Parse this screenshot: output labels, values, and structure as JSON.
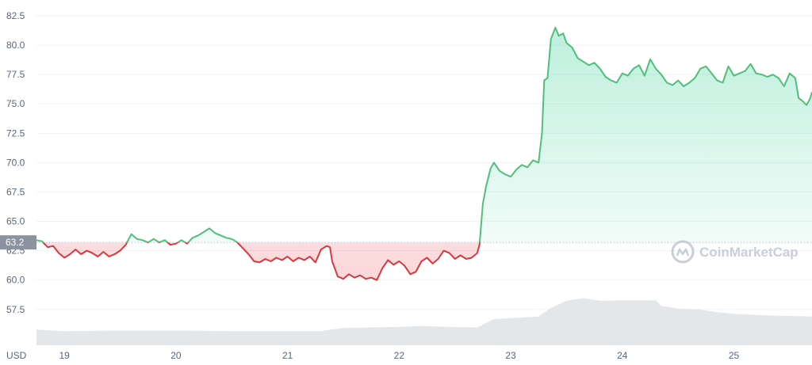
{
  "chart_data": {
    "type": "line",
    "title": "",
    "currency_label": "USD",
    "baseline": {
      "value": 63.2,
      "label": "63.2"
    },
    "ylim": [
      56.0,
      82.5
    ],
    "y_ticks": [
      {
        "value": 82.5,
        "label": "82.5"
      },
      {
        "value": 80.0,
        "label": "80.0"
      },
      {
        "value": 77.5,
        "label": "77.5"
      },
      {
        "value": 75.0,
        "label": "75.0"
      },
      {
        "value": 72.5,
        "label": "72.5"
      },
      {
        "value": 70.0,
        "label": "70.0"
      },
      {
        "value": 67.5,
        "label": "67.5"
      },
      {
        "value": 65.0,
        "label": "65.0"
      },
      {
        "value": 62.5,
        "label": "62.5"
      },
      {
        "value": 60.0,
        "label": "60.0"
      },
      {
        "value": 57.5,
        "label": "57.5"
      }
    ],
    "xlim": [
      18.75,
      25.7
    ],
    "x_ticks": [
      {
        "value": 19,
        "label": "19"
      },
      {
        "value": 20,
        "label": "20"
      },
      {
        "value": 21,
        "label": "21"
      },
      {
        "value": 22,
        "label": "22"
      },
      {
        "value": 23,
        "label": "23"
      },
      {
        "value": 24,
        "label": "24"
      },
      {
        "value": 25,
        "label": "25"
      }
    ],
    "colors": {
      "up": "#16c784",
      "down": "#ea3943",
      "up_line": "#4fbf7a",
      "down_line": "#d9383f",
      "volume": "#e1e4e8"
    },
    "watermark": "CoinMarketCap",
    "series": [
      {
        "values": [
          [
            18.75,
            63.4
          ],
          [
            18.8,
            63.3
          ],
          [
            18.85,
            62.8
          ],
          [
            18.9,
            62.9
          ],
          [
            18.95,
            62.3
          ],
          [
            19.0,
            61.9
          ],
          [
            19.05,
            62.2
          ],
          [
            19.1,
            62.6
          ],
          [
            19.15,
            62.2
          ],
          [
            19.2,
            62.5
          ],
          [
            19.25,
            62.3
          ],
          [
            19.3,
            62.0
          ],
          [
            19.35,
            62.4
          ],
          [
            19.4,
            62.0
          ],
          [
            19.45,
            62.2
          ],
          [
            19.5,
            62.5
          ],
          [
            19.55,
            63.0
          ],
          [
            19.6,
            63.9
          ],
          [
            19.65,
            63.5
          ],
          [
            19.7,
            63.4
          ],
          [
            19.75,
            63.2
          ],
          [
            19.8,
            63.5
          ],
          [
            19.85,
            63.2
          ],
          [
            19.9,
            63.4
          ],
          [
            19.95,
            63.0
          ],
          [
            20.0,
            63.1
          ],
          [
            20.05,
            63.4
          ],
          [
            20.1,
            63.1
          ],
          [
            20.15,
            63.6
          ],
          [
            20.2,
            63.8
          ],
          [
            20.25,
            64.1
          ],
          [
            20.3,
            64.4
          ],
          [
            20.35,
            64.0
          ],
          [
            20.4,
            63.8
          ],
          [
            20.45,
            63.6
          ],
          [
            20.5,
            63.5
          ],
          [
            20.55,
            63.2
          ],
          [
            20.6,
            62.7
          ],
          [
            20.65,
            62.2
          ],
          [
            20.7,
            61.6
          ],
          [
            20.75,
            61.5
          ],
          [
            20.8,
            61.8
          ],
          [
            20.85,
            61.6
          ],
          [
            20.9,
            61.9
          ],
          [
            20.95,
            61.7
          ],
          [
            21.0,
            62.0
          ],
          [
            21.05,
            61.6
          ],
          [
            21.1,
            61.9
          ],
          [
            21.15,
            61.7
          ],
          [
            21.2,
            62.0
          ],
          [
            21.25,
            61.5
          ],
          [
            21.3,
            62.6
          ],
          [
            21.35,
            62.9
          ],
          [
            21.38,
            62.8
          ],
          [
            21.4,
            61.6
          ],
          [
            21.45,
            60.3
          ],
          [
            21.5,
            60.1
          ],
          [
            21.55,
            60.5
          ],
          [
            21.6,
            60.2
          ],
          [
            21.65,
            60.4
          ],
          [
            21.7,
            60.1
          ],
          [
            21.75,
            60.2
          ],
          [
            21.8,
            60.0
          ],
          [
            21.85,
            61.0
          ],
          [
            21.9,
            61.7
          ],
          [
            21.95,
            61.3
          ],
          [
            22.0,
            61.6
          ],
          [
            22.05,
            61.2
          ],
          [
            22.1,
            60.5
          ],
          [
            22.15,
            60.7
          ],
          [
            22.2,
            61.6
          ],
          [
            22.25,
            61.9
          ],
          [
            22.3,
            61.4
          ],
          [
            22.35,
            61.8
          ],
          [
            22.4,
            62.5
          ],
          [
            22.45,
            62.3
          ],
          [
            22.5,
            61.8
          ],
          [
            22.55,
            62.1
          ],
          [
            22.6,
            61.8
          ],
          [
            22.65,
            61.9
          ],
          [
            22.7,
            62.3
          ],
          [
            22.72,
            63.0
          ],
          [
            22.75,
            66.5
          ],
          [
            22.78,
            68.0
          ],
          [
            22.82,
            69.5
          ],
          [
            22.85,
            70.0
          ],
          [
            22.9,
            69.3
          ],
          [
            22.95,
            69.0
          ],
          [
            23.0,
            68.8
          ],
          [
            23.05,
            69.4
          ],
          [
            23.1,
            69.8
          ],
          [
            23.15,
            69.6
          ],
          [
            23.2,
            70.2
          ],
          [
            23.25,
            70.0
          ],
          [
            23.28,
            72.5
          ],
          [
            23.3,
            77.0
          ],
          [
            23.33,
            77.2
          ],
          [
            23.36,
            80.5
          ],
          [
            23.4,
            81.5
          ],
          [
            23.43,
            80.8
          ],
          [
            23.47,
            81.0
          ],
          [
            23.5,
            80.2
          ],
          [
            23.55,
            79.8
          ],
          [
            23.6,
            78.9
          ],
          [
            23.65,
            78.6
          ],
          [
            23.7,
            78.3
          ],
          [
            23.75,
            78.5
          ],
          [
            23.8,
            78.0
          ],
          [
            23.85,
            77.3
          ],
          [
            23.9,
            77.0
          ],
          [
            23.95,
            76.8
          ],
          [
            24.0,
            77.6
          ],
          [
            24.05,
            77.4
          ],
          [
            24.1,
            78.0
          ],
          [
            24.15,
            78.3
          ],
          [
            24.2,
            77.4
          ],
          [
            24.25,
            78.8
          ],
          [
            24.3,
            78.0
          ],
          [
            24.35,
            77.5
          ],
          [
            24.4,
            76.8
          ],
          [
            24.45,
            76.6
          ],
          [
            24.5,
            77.0
          ],
          [
            24.55,
            76.5
          ],
          [
            24.6,
            76.8
          ],
          [
            24.65,
            77.2
          ],
          [
            24.7,
            78.0
          ],
          [
            24.75,
            78.2
          ],
          [
            24.8,
            77.6
          ],
          [
            24.85,
            77.0
          ],
          [
            24.9,
            76.8
          ],
          [
            24.95,
            78.2
          ],
          [
            25.0,
            77.4
          ],
          [
            25.05,
            77.6
          ],
          [
            25.1,
            77.8
          ],
          [
            25.15,
            78.4
          ],
          [
            25.2,
            77.6
          ],
          [
            25.25,
            77.5
          ],
          [
            25.3,
            77.3
          ],
          [
            25.35,
            77.5
          ],
          [
            25.4,
            77.2
          ],
          [
            25.45,
            76.5
          ],
          [
            25.5,
            77.6
          ],
          [
            25.55,
            77.2
          ],
          [
            25.58,
            75.5
          ],
          [
            25.62,
            75.2
          ],
          [
            25.65,
            74.9
          ],
          [
            25.68,
            75.4
          ],
          [
            25.7,
            76.0
          ]
        ]
      }
    ],
    "volume": {
      "values": [
        [
          18.75,
          0.3
        ],
        [
          19.0,
          0.27
        ],
        [
          19.5,
          0.28
        ],
        [
          20.0,
          0.28
        ],
        [
          20.5,
          0.27
        ],
        [
          21.0,
          0.27
        ],
        [
          21.3,
          0.27
        ],
        [
          21.35,
          0.29
        ],
        [
          21.5,
          0.33
        ],
        [
          22.0,
          0.35
        ],
        [
          22.2,
          0.37
        ],
        [
          22.45,
          0.35
        ],
        [
          22.7,
          0.34
        ],
        [
          22.85,
          0.5
        ],
        [
          23.0,
          0.52
        ],
        [
          23.25,
          0.55
        ],
        [
          23.35,
          0.7
        ],
        [
          23.5,
          0.85
        ],
        [
          23.65,
          0.9
        ],
        [
          23.8,
          0.85
        ],
        [
          24.0,
          0.86
        ],
        [
          24.2,
          0.86
        ],
        [
          24.3,
          0.86
        ],
        [
          24.35,
          0.75
        ],
        [
          24.5,
          0.7
        ],
        [
          24.7,
          0.68
        ],
        [
          24.85,
          0.63
        ],
        [
          25.0,
          0.6
        ],
        [
          25.3,
          0.57
        ],
        [
          25.7,
          0.55
        ]
      ]
    }
  }
}
